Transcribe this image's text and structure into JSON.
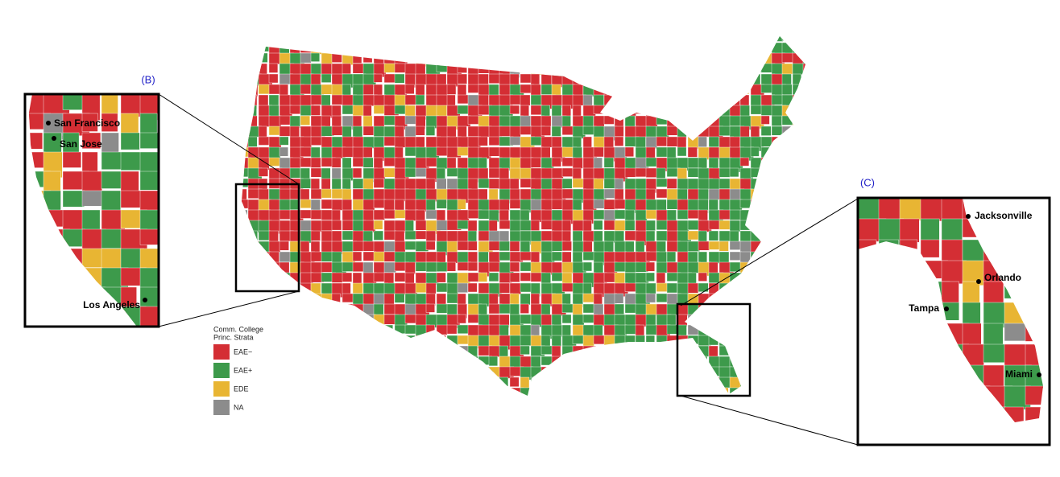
{
  "insets": [
    {
      "label": "(B)",
      "cities": [
        "San Francisco",
        "San Jose",
        "Los Angeles"
      ]
    },
    {
      "label": "(C)",
      "cities": [
        "Jacksonville",
        "Orlando",
        "Tampa",
        "Miami"
      ]
    }
  ],
  "legend": {
    "title": [
      "Comm. College",
      "Princ. Strata"
    ],
    "items": [
      {
        "label": "EAE−",
        "color": "#d42e34"
      },
      {
        "label": "EAE+",
        "color": "#3d9a4b"
      },
      {
        "label": "EDE",
        "color": "#e8b533"
      },
      {
        "label": "NA",
        "color": "#8c8c8c"
      }
    ]
  }
}
